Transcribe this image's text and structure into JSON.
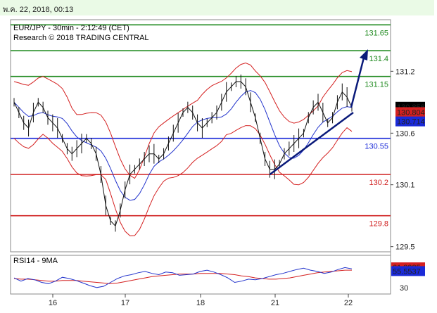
{
  "header": {
    "datetime": "พ.ค. 22, 2018, 00:13"
  },
  "chart_data": {
    "type": "line",
    "title": "EUR/JPY - 30min - 2:12:49 (CET)",
    "subtitle": "Research © 2018 TRADING CENTRAL",
    "price_ticks": [
      131.2,
      130.6,
      130.1,
      129.5
    ],
    "price_ticks_text": [
      "131.2",
      "130.6",
      "130.1",
      "129.5"
    ],
    "ylim": [
      129.45,
      131.7
    ],
    "x_ticks": [
      "16",
      "17",
      "18",
      "21",
      "22"
    ],
    "levels": [
      {
        "value": 131.65,
        "label": "131.65",
        "color": "#1f8a1f"
      },
      {
        "value": 131.4,
        "label": "131.4",
        "color": "#1f8a1f"
      },
      {
        "value": 131.15,
        "label": "131.15",
        "color": "#1f8a1f"
      },
      {
        "value": 130.55,
        "label": "130.55",
        "color": "#1a2ad8"
      },
      {
        "value": 130.2,
        "label": "130.2",
        "color": "#d02020"
      },
      {
        "value": 129.8,
        "label": "129.8",
        "color": "#d02020"
      }
    ],
    "last_price": {
      "value": 130.856,
      "label": "130.856"
    },
    "upper_band": {
      "value": 130.804,
      "label": "130.804"
    },
    "moving_avg": {
      "value": 130.714,
      "label": "130.714"
    },
    "support_line": {
      "from": 130.2,
      "to": 130.8
    },
    "target_arrow": {
      "from": 130.85,
      "to": 131.4
    },
    "price": [
      130.9,
      130.8,
      130.7,
      130.65,
      130.8,
      130.9,
      130.85,
      130.75,
      130.7,
      130.65,
      130.55,
      130.45,
      130.4,
      130.45,
      130.5,
      130.55,
      130.5,
      130.4,
      130.2,
      129.9,
      129.75,
      129.7,
      129.85,
      130.05,
      130.2,
      130.25,
      130.3,
      130.35,
      130.4,
      130.4,
      130.35,
      130.4,
      130.5,
      130.6,
      130.7,
      130.8,
      130.85,
      130.8,
      130.7,
      130.65,
      130.7,
      130.75,
      130.8,
      130.9,
      131.0,
      131.05,
      131.1,
      131.1,
      131.05,
      130.9,
      130.75,
      130.55,
      130.35,
      130.25,
      130.25,
      130.3,
      130.4,
      130.45,
      130.5,
      130.55,
      130.6,
      130.75,
      130.85,
      130.9,
      130.8,
      130.7,
      130.75,
      130.9,
      131.0,
      130.95,
      130.85
    ],
    "rsi": {
      "title": "RSI14 - 9MA",
      "values": [
        45,
        40,
        44,
        42,
        38,
        36,
        40,
        46,
        44,
        41,
        37,
        33,
        30,
        32,
        38,
        44,
        48,
        50,
        53,
        55,
        52,
        50,
        54,
        53,
        49,
        50,
        51,
        55,
        57,
        54,
        50,
        45,
        38,
        40,
        43,
        42,
        44,
        47,
        50,
        52,
        55,
        58,
        60,
        57,
        55,
        52,
        54,
        58,
        61,
        59
      ],
      "ma": [
        44,
        43,
        43,
        42,
        41,
        40,
        40,
        41,
        41,
        41,
        40,
        39,
        38,
        37,
        36,
        37,
        39,
        41,
        43,
        45,
        47,
        48,
        49,
        50,
        51,
        51,
        51,
        52,
        52,
        52,
        52,
        51,
        50,
        48,
        47,
        45,
        44,
        43,
        43,
        44,
        45,
        47,
        49,
        51,
        53,
        54,
        55,
        56,
        57,
        57
      ],
      "ticks": [
        {
          "value": 30,
          "label": "30"
        }
      ],
      "last": {
        "value": 55.5537,
        "label": "55.5537"
      },
      "ma_last": {
        "value": 61.3985,
        "label": "61.3985"
      },
      "ylim": [
        20,
        80
      ]
    }
  },
  "colors": {
    "price": "#111111",
    "band": "#d42020",
    "ma": "#2233cc",
    "trend": "#0a1a7a"
  }
}
